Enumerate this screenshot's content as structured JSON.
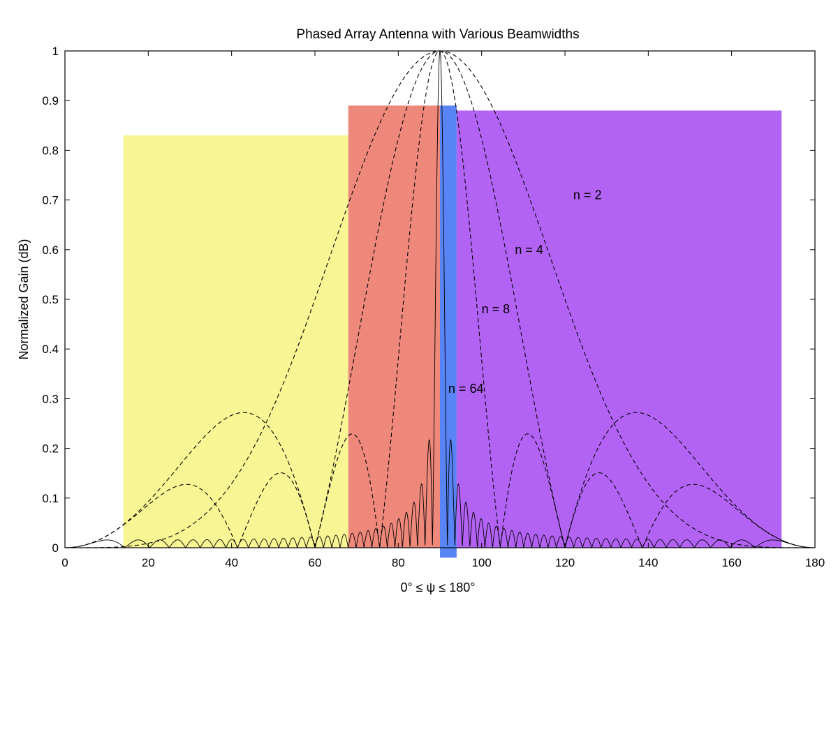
{
  "chart_data": {
    "type": "line",
    "title": "Phased Array Antenna with Various Beamwidths",
    "xlabel": "0° ≤ ψ ≤ 180°",
    "ylabel": "Normalized Gain (dB)",
    "xlim": [
      0,
      180
    ],
    "ylim": [
      0,
      1
    ],
    "xticks": [
      "0",
      "20",
      "40",
      "60",
      "80",
      "100",
      "120",
      "140",
      "160",
      "180"
    ],
    "yticks": [
      "0",
      "0.1",
      "0.2",
      "0.3",
      "0.4",
      "0.5",
      "0.6",
      "0.7",
      "0.8",
      "0.9",
      "1"
    ],
    "grid": false,
    "series": [
      {
        "name": "n = 2",
        "n": 2,
        "label_at": [
          122,
          0.71
        ]
      },
      {
        "name": "n = 4",
        "n": 4,
        "label_at": [
          108,
          0.6
        ]
      },
      {
        "name": "n = 8",
        "n": 8,
        "label_at": [
          100,
          0.48
        ]
      },
      {
        "name": "n = 64",
        "n": 64,
        "label_at": [
          92,
          0.32
        ]
      }
    ],
    "highlights": [
      {
        "color": "#f5ef5a",
        "opacity": 0.65,
        "x": [
          14,
          68
        ],
        "y": [
          0,
          0.83
        ]
      },
      {
        "color": "#e8604f",
        "opacity": 0.75,
        "x": [
          68,
          90
        ],
        "y": [
          0,
          0.89
        ]
      },
      {
        "color": "#3b6ff5",
        "opacity": 0.85,
        "x": [
          90,
          94
        ],
        "y": [
          -0.02,
          0.89
        ]
      },
      {
        "color": "#9a2ff0",
        "opacity": 0.75,
        "x": [
          94,
          172
        ],
        "y": [
          0,
          0.88
        ]
      }
    ]
  }
}
